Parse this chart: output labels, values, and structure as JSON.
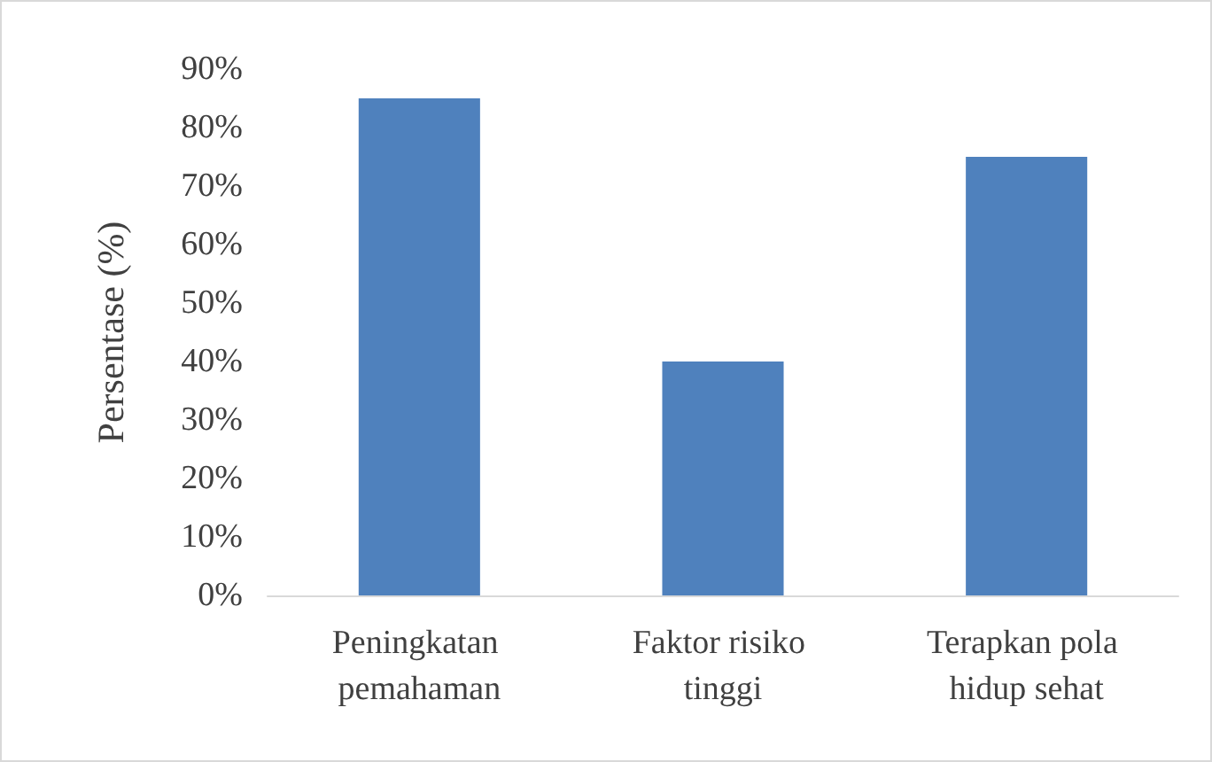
{
  "chart_data": {
    "type": "bar",
    "ylabel": "Persentase (%)",
    "categories": [
      "Peningkatan pemahaman",
      "Faktor risiko tinggi",
      "Terapkan pola hidup sehat"
    ],
    "values": [
      85,
      40,
      75
    ],
    "color": "#4f81bd",
    "ylim": [
      0,
      90
    ],
    "yticks": [
      {
        "value": 0,
        "label": "0%"
      },
      {
        "value": 10,
        "label": "10%"
      },
      {
        "value": 20,
        "label": "20%"
      },
      {
        "value": 30,
        "label": "30%"
      },
      {
        "value": 40,
        "label": "40%"
      },
      {
        "value": 50,
        "label": "50%"
      },
      {
        "value": 60,
        "label": "60%"
      },
      {
        "value": 70,
        "label": "70%"
      },
      {
        "value": 80,
        "label": "80%"
      },
      {
        "value": 90,
        "label": "90%"
      }
    ],
    "grid": false
  }
}
